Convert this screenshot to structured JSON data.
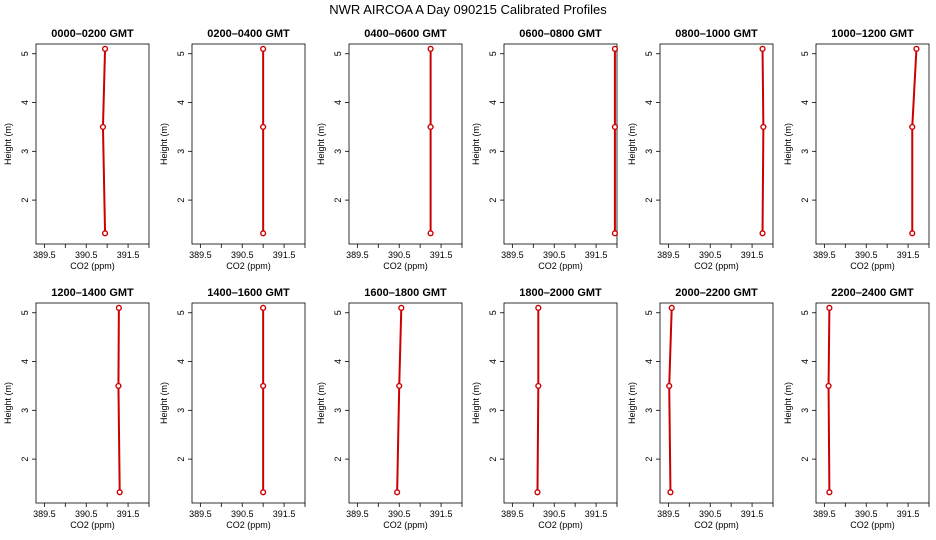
{
  "figure": {
    "title": "NWR AIRCOA A  Day 090215  Calibrated Profiles"
  },
  "chart_data": [
    {
      "type": "line",
      "title": "0000–0200 GMT",
      "xlabel": "CO2 (ppm)",
      "ylabel": "Height (m)",
      "xlim": [
        389.3,
        392.0
      ],
      "ylim": [
        1.1,
        5.2
      ],
      "x_ticks": [
        "389.5",
        "390.5",
        "391.5"
      ],
      "x_tick_values": [
        389.5,
        390.5,
        391.5
      ],
      "y_ticks": [
        "2",
        "3",
        "4",
        "5"
      ],
      "y_tick_values": [
        2,
        3,
        4,
        5
      ],
      "series": [
        {
          "x": [
            390.95,
            390.9,
            390.95
          ],
          "y": [
            1.32,
            3.5,
            5.1
          ],
          "color": "#cc0000"
        }
      ]
    },
    {
      "type": "line",
      "title": "0200–0400 GMT",
      "xlabel": "CO2 (ppm)",
      "ylabel": "Height (m)",
      "xlim": [
        389.3,
        392.0
      ],
      "ylim": [
        1.1,
        5.2
      ],
      "x_ticks": [
        "389.5",
        "390.5",
        "391.5"
      ],
      "x_tick_values": [
        389.5,
        390.5,
        391.5
      ],
      "y_ticks": [
        "2",
        "3",
        "4",
        "5"
      ],
      "y_tick_values": [
        2,
        3,
        4,
        5
      ],
      "series": [
        {
          "x": [
            391.0,
            391.0,
            391.0
          ],
          "y": [
            1.32,
            3.5,
            5.1
          ],
          "color": "#cc0000"
        }
      ]
    },
    {
      "type": "line",
      "title": "0400–0600 GMT",
      "xlabel": "CO2 (ppm)",
      "ylabel": "Height (m)",
      "xlim": [
        389.3,
        392.0
      ],
      "ylim": [
        1.1,
        5.2
      ],
      "x_ticks": [
        "389.5",
        "390.5",
        "391.5"
      ],
      "x_tick_values": [
        389.5,
        390.5,
        391.5
      ],
      "y_ticks": [
        "2",
        "3",
        "4",
        "5"
      ],
      "y_tick_values": [
        2,
        3,
        4,
        5
      ],
      "series": [
        {
          "x": [
            391.25,
            391.25,
            391.25
          ],
          "y": [
            1.32,
            3.5,
            5.1
          ],
          "color": "#cc0000"
        }
      ]
    },
    {
      "type": "line",
      "title": "0600–0800 GMT",
      "xlabel": "CO2 (ppm)",
      "ylabel": "Height (m)",
      "xlim": [
        389.3,
        392.0
      ],
      "ylim": [
        1.1,
        5.2
      ],
      "x_ticks": [
        "389.5",
        "390.5",
        "391.5"
      ],
      "x_tick_values": [
        389.5,
        390.5,
        391.5
      ],
      "y_ticks": [
        "2",
        "3",
        "4",
        "5"
      ],
      "y_tick_values": [
        2,
        3,
        4,
        5
      ],
      "series": [
        {
          "x": [
            391.95,
            391.95,
            391.95
          ],
          "y": [
            1.32,
            3.5,
            5.1
          ],
          "color": "#cc0000"
        }
      ]
    },
    {
      "type": "line",
      "title": "0800–1000 GMT",
      "xlabel": "CO2 (ppm)",
      "ylabel": "Height (m)",
      "xlim": [
        389.3,
        392.0
      ],
      "ylim": [
        1.1,
        5.2
      ],
      "x_ticks": [
        "389.5",
        "390.5",
        "391.5"
      ],
      "x_tick_values": [
        389.5,
        390.5,
        391.5
      ],
      "y_ticks": [
        "2",
        "3",
        "4",
        "5"
      ],
      "y_tick_values": [
        2,
        3,
        4,
        5
      ],
      "series": [
        {
          "x": [
            391.75,
            391.77,
            391.75
          ],
          "y": [
            1.32,
            3.5,
            5.1
          ],
          "color": "#cc0000"
        }
      ]
    },
    {
      "type": "line",
      "title": "1000–1200 GMT",
      "xlabel": "CO2 (ppm)",
      "ylabel": "Height (m)",
      "xlim": [
        389.3,
        392.0
      ],
      "ylim": [
        1.1,
        5.2
      ],
      "x_ticks": [
        "389.5",
        "390.5",
        "391.5"
      ],
      "x_tick_values": [
        389.5,
        390.5,
        391.5
      ],
      "y_ticks": [
        "2",
        "3",
        "4",
        "5"
      ],
      "y_tick_values": [
        2,
        3,
        4,
        5
      ],
      "series": [
        {
          "x": [
            391.6,
            391.6,
            391.7
          ],
          "y": [
            1.32,
            3.5,
            5.1
          ],
          "color": "#cc0000"
        }
      ]
    },
    {
      "type": "line",
      "title": "1200–1400 GMT",
      "xlabel": "CO2 (ppm)",
      "ylabel": "Height (m)",
      "xlim": [
        389.3,
        392.0
      ],
      "ylim": [
        1.1,
        5.2
      ],
      "x_ticks": [
        "389.5",
        "390.5",
        "391.5"
      ],
      "x_tick_values": [
        389.5,
        390.5,
        391.5
      ],
      "y_ticks": [
        "2",
        "3",
        "4",
        "5"
      ],
      "y_tick_values": [
        2,
        3,
        4,
        5
      ],
      "series": [
        {
          "x": [
            391.3,
            391.27,
            391.28
          ],
          "y": [
            1.32,
            3.5,
            5.1
          ],
          "color": "#cc0000"
        }
      ]
    },
    {
      "type": "line",
      "title": "1400–1600 GMT",
      "xlabel": "CO2 (ppm)",
      "ylabel": "Height (m)",
      "xlim": [
        389.3,
        392.0
      ],
      "ylim": [
        1.1,
        5.2
      ],
      "x_ticks": [
        "389.5",
        "390.5",
        "391.5"
      ],
      "x_tick_values": [
        389.5,
        390.5,
        391.5
      ],
      "y_ticks": [
        "2",
        "3",
        "4",
        "5"
      ],
      "y_tick_values": [
        2,
        3,
        4,
        5
      ],
      "series": [
        {
          "x": [
            391.0,
            391.0,
            391.0
          ],
          "y": [
            1.32,
            3.5,
            5.1
          ],
          "color": "#cc0000"
        }
      ]
    },
    {
      "type": "line",
      "title": "1600–1800 GMT",
      "xlabel": "CO2 (ppm)",
      "ylabel": "Height (m)",
      "xlim": [
        389.3,
        392.0
      ],
      "ylim": [
        1.1,
        5.2
      ],
      "x_ticks": [
        "389.5",
        "390.5",
        "391.5"
      ],
      "x_tick_values": [
        389.5,
        390.5,
        391.5
      ],
      "y_ticks": [
        "2",
        "3",
        "4",
        "5"
      ],
      "y_tick_values": [
        2,
        3,
        4,
        5
      ],
      "series": [
        {
          "x": [
            390.45,
            390.5,
            390.55
          ],
          "y": [
            1.32,
            3.5,
            5.1
          ],
          "color": "#cc0000"
        }
      ]
    },
    {
      "type": "line",
      "title": "1800–2000 GMT",
      "xlabel": "CO2 (ppm)",
      "ylabel": "Height (m)",
      "xlim": [
        389.3,
        392.0
      ],
      "ylim": [
        1.1,
        5.2
      ],
      "x_ticks": [
        "389.5",
        "390.5",
        "391.5"
      ],
      "x_tick_values": [
        389.5,
        390.5,
        391.5
      ],
      "y_ticks": [
        "2",
        "3",
        "4",
        "5"
      ],
      "y_tick_values": [
        2,
        3,
        4,
        5
      ],
      "series": [
        {
          "x": [
            390.1,
            390.12,
            390.12
          ],
          "y": [
            1.32,
            3.5,
            5.1
          ],
          "color": "#cc0000"
        }
      ]
    },
    {
      "type": "line",
      "title": "2000–2200 GMT",
      "xlabel": "CO2 (ppm)",
      "ylabel": "Height (m)",
      "xlim": [
        389.3,
        392.0
      ],
      "ylim": [
        1.1,
        5.2
      ],
      "x_ticks": [
        "389.5",
        "390.5",
        "391.5"
      ],
      "x_tick_values": [
        389.5,
        390.5,
        391.5
      ],
      "y_ticks": [
        "2",
        "3",
        "4",
        "5"
      ],
      "y_tick_values": [
        2,
        3,
        4,
        5
      ],
      "series": [
        {
          "x": [
            389.55,
            389.52,
            389.58
          ],
          "y": [
            1.32,
            3.5,
            5.1
          ],
          "color": "#cc0000"
        }
      ]
    },
    {
      "type": "line",
      "title": "2200–2400 GMT",
      "xlabel": "CO2 (ppm)",
      "ylabel": "Height (m)",
      "xlim": [
        389.3,
        392.0
      ],
      "ylim": [
        1.1,
        5.2
      ],
      "x_ticks": [
        "389.5",
        "390.5",
        "391.5"
      ],
      "x_tick_values": [
        389.5,
        390.5,
        391.5
      ],
      "y_ticks": [
        "2",
        "3",
        "4",
        "5"
      ],
      "y_tick_values": [
        2,
        3,
        4,
        5
      ],
      "series": [
        {
          "x": [
            389.62,
            389.6,
            389.62
          ],
          "y": [
            1.32,
            3.5,
            5.1
          ],
          "color": "#cc0000"
        }
      ]
    }
  ]
}
